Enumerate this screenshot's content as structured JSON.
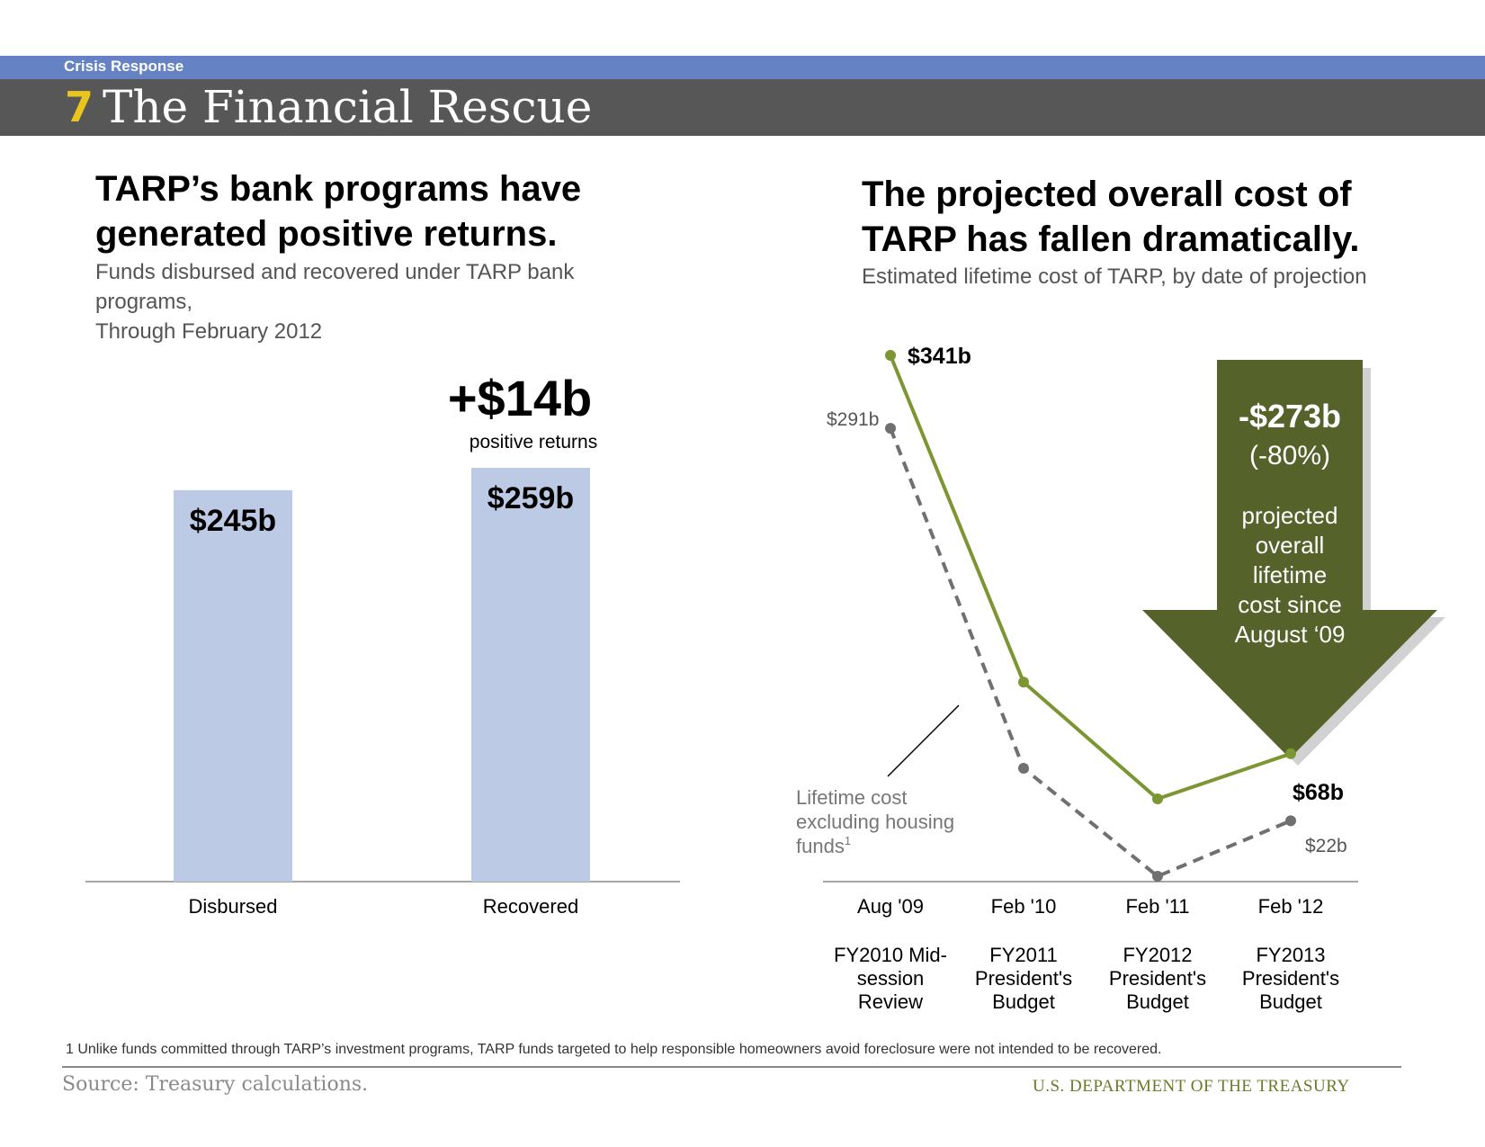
{
  "header": {
    "section": "Crisis Response",
    "number": "7",
    "title": "The Financial Rescue"
  },
  "left_panel": {
    "headline_line1": "TARP’s bank programs have",
    "headline_line2": "generated positive returns.",
    "subhead_line1": "Funds disbursed and recovered under TARP bank programs,",
    "subhead_line2": "Through February 2012"
  },
  "right_panel": {
    "headline_line1": "The projected overall cost of",
    "headline_line2": "TARP has fallen dramatically.",
    "subhead": "Estimated lifetime cost of TARP, by date of projection"
  },
  "chart_data": [
    {
      "type": "bar",
      "categories": [
        "Disbursed",
        "Recovered"
      ],
      "values": [
        245,
        259
      ],
      "value_labels": [
        "$245b",
        "$259b"
      ],
      "ylim": [
        0,
        259
      ],
      "annotation": {
        "value": "+$14b",
        "text": "positive returns"
      }
    },
    {
      "type": "line",
      "categories": [
        "Aug '09",
        "Feb '10",
        "Feb '11",
        "Feb '12"
      ],
      "category_sublabels": [
        [
          "FY2010 Mid-",
          "session",
          "Review"
        ],
        [
          "FY2011",
          "President's",
          "Budget"
        ],
        [
          "FY2012",
          "President's",
          "Budget"
        ],
        [
          "FY2013",
          "President's",
          "Budget"
        ]
      ],
      "series": [
        {
          "name": "Lifetime cost",
          "color": "#7b9632",
          "style": "solid",
          "values": [
            341,
            117,
            37,
            68
          ]
        },
        {
          "name": "Lifetime cost excluding housing funds",
          "color": "#707070",
          "style": "dashed",
          "values": [
            291,
            58,
            -16,
            22
          ]
        }
      ],
      "ylim": [
        -16,
        341
      ],
      "point_labels": {
        "first_main": "$341b",
        "first_excl": "$291b",
        "last_main": "$68b",
        "last_excl": "$22b"
      },
      "legend": {
        "line1": "Lifetime cost",
        "line2": "excluding housing",
        "line3": "funds",
        "superscript": "1"
      },
      "callout": {
        "amount": "-$273b",
        "percent": "(-80%)",
        "lines": [
          "projected",
          "overall",
          "lifetime",
          "cost since",
          "August ‘09"
        ],
        "color": "#55622a"
      }
    }
  ],
  "footer": {
    "footnote": "1 Unlike funds committed through TARP’s investment programs, TARP funds targeted to help responsible homeowners avoid foreclosure were not intended to be recovered.",
    "source": "Source: Treasury calculations.",
    "agency": "U.S. DEPARTMENT OF THE TREASURY"
  }
}
